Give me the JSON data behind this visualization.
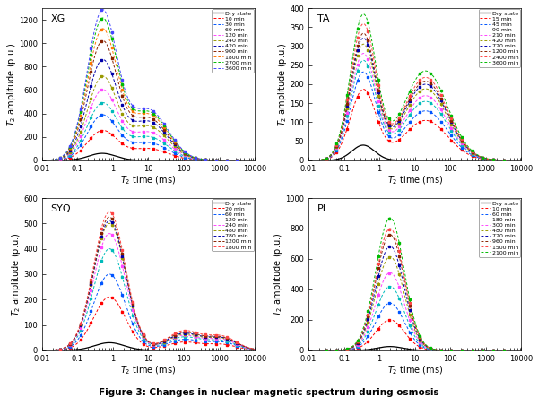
{
  "title": "Figure 3: Changes in nuclear magnetic spectrum during osmosis",
  "panels": [
    {
      "label": "XG",
      "ylabel": "$T_2$ amplitude (p.u.)",
      "xlabel": "$T_2$ time (ms)",
      "ylim": [
        0,
        1300
      ],
      "yticks": [
        0,
        200,
        400,
        600,
        800,
        1000,
        1200
      ],
      "legend": [
        "Dry state",
        "10 min",
        "30 min",
        "60 min",
        "120 min",
        "240 min",
        "420 min",
        "900 min",
        "1800 min",
        "2700 min",
        "3600 min"
      ],
      "colors": [
        "#000000",
        "#ff0000",
        "#0055ff",
        "#00bbbb",
        "#ff44ff",
        "#999900",
        "#0000aa",
        "#882200",
        "#ff7700",
        "#00bb00",
        "#4444ff"
      ],
      "p1_centers": [
        0.5,
        0.5,
        0.5,
        0.5,
        0.5,
        0.5,
        0.5,
        0.5,
        0.5,
        0.5,
        0.5
      ],
      "p1_amps": [
        60,
        250,
        380,
        480,
        590,
        700,
        840,
        1000,
        1100,
        1190,
        1260
      ],
      "p1_widths": [
        0.38,
        0.42,
        0.42,
        0.42,
        0.42,
        0.42,
        0.42,
        0.42,
        0.42,
        0.42,
        0.42
      ],
      "p2_centers": [
        10,
        10,
        10,
        10,
        10,
        10,
        10,
        10,
        10,
        10,
        10
      ],
      "p2_amps": [
        0,
        100,
        150,
        200,
        240,
        290,
        330,
        360,
        390,
        410,
        430
      ],
      "p2_widths": [
        0.5,
        0.55,
        0.55,
        0.55,
        0.55,
        0.55,
        0.55,
        0.55,
        0.55,
        0.55,
        0.55
      ],
      "p3_centers": [],
      "p3_amps": [],
      "p3_widths": []
    },
    {
      "label": "TA",
      "ylabel": "$T_2$ amplitude (p.u.)",
      "xlabel": "$T_2$ time (ms)",
      "ylim": [
        0,
        400
      ],
      "yticks": [
        0,
        50,
        100,
        150,
        200,
        250,
        300,
        350,
        400
      ],
      "legend": [
        "Dry state",
        "15 min",
        "45 min",
        "90 min",
        "210 min",
        "420 min",
        "720 min",
        "1200 min",
        "2400 min",
        "3600 min"
      ],
      "colors": [
        "#000000",
        "#ff0000",
        "#0055ff",
        "#00bbbb",
        "#ff44ff",
        "#999900",
        "#0000aa",
        "#882200",
        "#ff4444",
        "#00bb00"
      ],
      "p1_centers": [
        0.35,
        0.35,
        0.35,
        0.35,
        0.35,
        0.35,
        0.35,
        0.35,
        0.35,
        0.35
      ],
      "p1_amps": [
        40,
        185,
        230,
        260,
        278,
        302,
        318,
        330,
        355,
        380
      ],
      "p1_widths": [
        0.32,
        0.36,
        0.36,
        0.36,
        0.36,
        0.36,
        0.36,
        0.36,
        0.36,
        0.36
      ],
      "p2_centers": [
        20,
        20,
        20,
        20,
        20,
        20,
        20,
        20,
        20,
        20
      ],
      "p2_amps": [
        0,
        105,
        130,
        155,
        170,
        188,
        200,
        208,
        218,
        235
      ],
      "p2_widths": [
        0.6,
        0.62,
        0.62,
        0.62,
        0.62,
        0.62,
        0.62,
        0.62,
        0.62,
        0.62
      ],
      "p3_centers": [],
      "p3_amps": [],
      "p3_widths": []
    },
    {
      "label": "SYQ",
      "ylabel": "$T_2$ amplitude (p.u.)",
      "xlabel": "$T_2$ time (ms)",
      "ylim": [
        0,
        600
      ],
      "yticks": [
        0,
        100,
        200,
        300,
        400,
        500,
        600
      ],
      "legend": [
        "Dry state",
        "20 min",
        "60 min",
        "120 min",
        "240 min",
        "480 min",
        "780 min",
        "1200 min",
        "1800 min"
      ],
      "colors": [
        "#000000",
        "#ff0000",
        "#0055ff",
        "#00bbbb",
        "#ff44ff",
        "#999900",
        "#0000aa",
        "#882200",
        "#ff4444"
      ],
      "p1_centers": [
        0.8,
        0.8,
        0.8,
        0.8,
        0.8,
        0.8,
        0.8,
        0.8,
        0.8
      ],
      "p1_amps": [
        30,
        210,
        300,
        400,
        460,
        500,
        510,
        525,
        545
      ],
      "p1_widths": [
        0.42,
        0.45,
        0.45,
        0.45,
        0.45,
        0.45,
        0.45,
        0.45,
        0.45
      ],
      "p2_centers": [
        100,
        100,
        100,
        100,
        100,
        100,
        100,
        100,
        100
      ],
      "p2_amps": [
        0,
        32,
        42,
        52,
        58,
        62,
        66,
        70,
        76
      ],
      "p2_widths": [
        0.45,
        0.48,
        0.48,
        0.48,
        0.48,
        0.48,
        0.48,
        0.48,
        0.48
      ],
      "p3_centers": [
        1200,
        1200,
        1200,
        1200,
        1200,
        1200,
        1200,
        1200,
        1200
      ],
      "p3_amps": [
        0,
        22,
        30,
        36,
        40,
        44,
        46,
        48,
        52
      ],
      "p3_widths": [
        0.4,
        0.42,
        0.42,
        0.42,
        0.42,
        0.42,
        0.42,
        0.42,
        0.42
      ]
    },
    {
      "label": "PL",
      "ylabel": "$T_2$ amplitude (p.u.)",
      "xlabel": "$T_2$ time (ms)",
      "ylim": [
        0,
        1000
      ],
      "yticks": [
        0,
        200,
        400,
        600,
        800,
        1000
      ],
      "legend": [
        "Dry state",
        "10 min",
        "60 min",
        "180 min",
        "300 min",
        "480 min",
        "720 min",
        "960 min",
        "1500 min",
        "2100 min"
      ],
      "colors": [
        "#000000",
        "#ff0000",
        "#0055ff",
        "#00bbbb",
        "#ff44ff",
        "#999900",
        "#0000aa",
        "#882200",
        "#ff4444",
        "#00bb00"
      ],
      "p1_centers": [
        2.0,
        2.0,
        2.0,
        2.0,
        2.0,
        2.0,
        2.0,
        2.0,
        2.0,
        2.0
      ],
      "p1_amps": [
        25,
        200,
        310,
        420,
        510,
        615,
        685,
        760,
        800,
        870
      ],
      "p1_widths": [
        0.35,
        0.4,
        0.4,
        0.4,
        0.4,
        0.4,
        0.4,
        0.4,
        0.4,
        0.4
      ],
      "p2_centers": [],
      "p2_amps": [],
      "p2_widths": [],
      "p3_centers": [],
      "p3_amps": [],
      "p3_widths": []
    }
  ]
}
